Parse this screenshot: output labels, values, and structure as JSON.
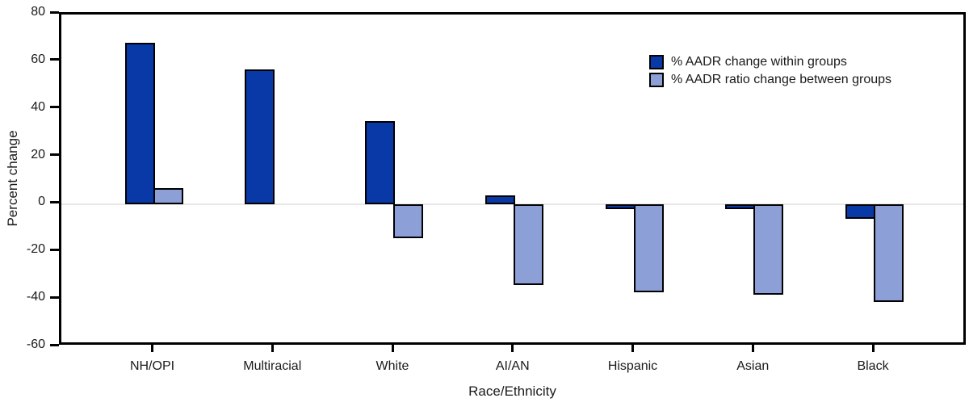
{
  "figure": {
    "background": "#ffffff",
    "text_color": "#1a1a1a",
    "frame_color": "#000000",
    "zero_line_color": "#e8e8e8"
  },
  "chart_data": {
    "type": "bar",
    "title": "",
    "xlabel": "Race/Ethnicity",
    "ylabel": "Percent change",
    "categories": [
      "NH/OPI",
      "Multiracial",
      "White",
      "AI/AN",
      "Hispanic",
      "Asian",
      "Black"
    ],
    "series": [
      {
        "name": "% AADR change within groups",
        "color": "#0839a6",
        "values": [
          68,
          57,
          35,
          4,
          -2,
          -2,
          -6
        ]
      },
      {
        "name": "% AADR ratio change between groups",
        "color": "#8c9fd6",
        "values": [
          7,
          0,
          -14,
          -34,
          -37,
          -38,
          -41
        ]
      }
    ],
    "ylim": [
      -60,
      80
    ],
    "yticks": [
      80,
      60,
      40,
      20,
      0,
      -20,
      -40,
      -60
    ],
    "grid": "zero-line-only",
    "legend_position": "upper-right-inside",
    "bar_border_color": "#000000",
    "notes": "light-blue series bar omitted for Multiracial (value 0, no bar drawn)"
  }
}
